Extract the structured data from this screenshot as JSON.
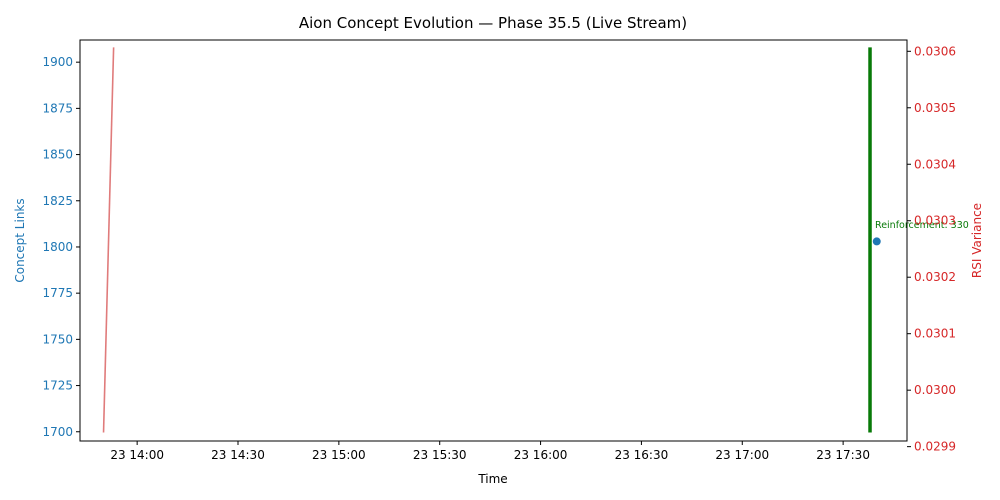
{
  "chart_data": {
    "type": "line",
    "title": "Aion Concept Evolution — Phase 35.5 (Live Stream)",
    "xlabel": "Time",
    "ylabel_left": "Concept Links",
    "ylabel_right": "RSI Variance",
    "x_ticks": [
      "23 14:00",
      "23 14:30",
      "23 15:00",
      "23 15:30",
      "23 16:00",
      "23 16:30",
      "23 17:00",
      "23 17:30"
    ],
    "y_left_ticks": [
      "1700",
      "1725",
      "1750",
      "1775",
      "1800",
      "1825",
      "1850",
      "1875",
      "1900"
    ],
    "y_right_ticks": [
      "0.0299",
      "0.0300",
      "0.0301",
      "0.0302",
      "0.0303",
      "0.0304",
      "0.0305",
      "0.0306"
    ],
    "y_left_range": [
      1695,
      1912
    ],
    "y_right_range": [
      0.02991,
      0.03062
    ],
    "x_range": [
      "13:43",
      "17:49"
    ],
    "grid": false,
    "colors": {
      "left_axis": "#1f77b4",
      "right_axis": "#d62728",
      "rsi_line": "#e07b7b",
      "reinforcement": "#087a08",
      "point": "#1f77b4"
    },
    "series": [
      {
        "axis": "left",
        "kind": "scatter",
        "points": [
          {
            "x": "17:40",
            "y": 1803
          }
        ]
      },
      {
        "axis": "right",
        "kind": "line",
        "points": [
          {
            "x": "13:50",
            "y": 0.029925
          },
          {
            "x": "13:53",
            "y": 0.030607
          }
        ]
      }
    ],
    "vertical_lines": [
      {
        "x": "17:38",
        "y_from": 0.029925,
        "y_to": 0.030607,
        "axis": "right"
      }
    ],
    "annotations": [
      {
        "text": "Reinforcement: 330",
        "x": "17:38",
        "y": 1806
      }
    ]
  }
}
